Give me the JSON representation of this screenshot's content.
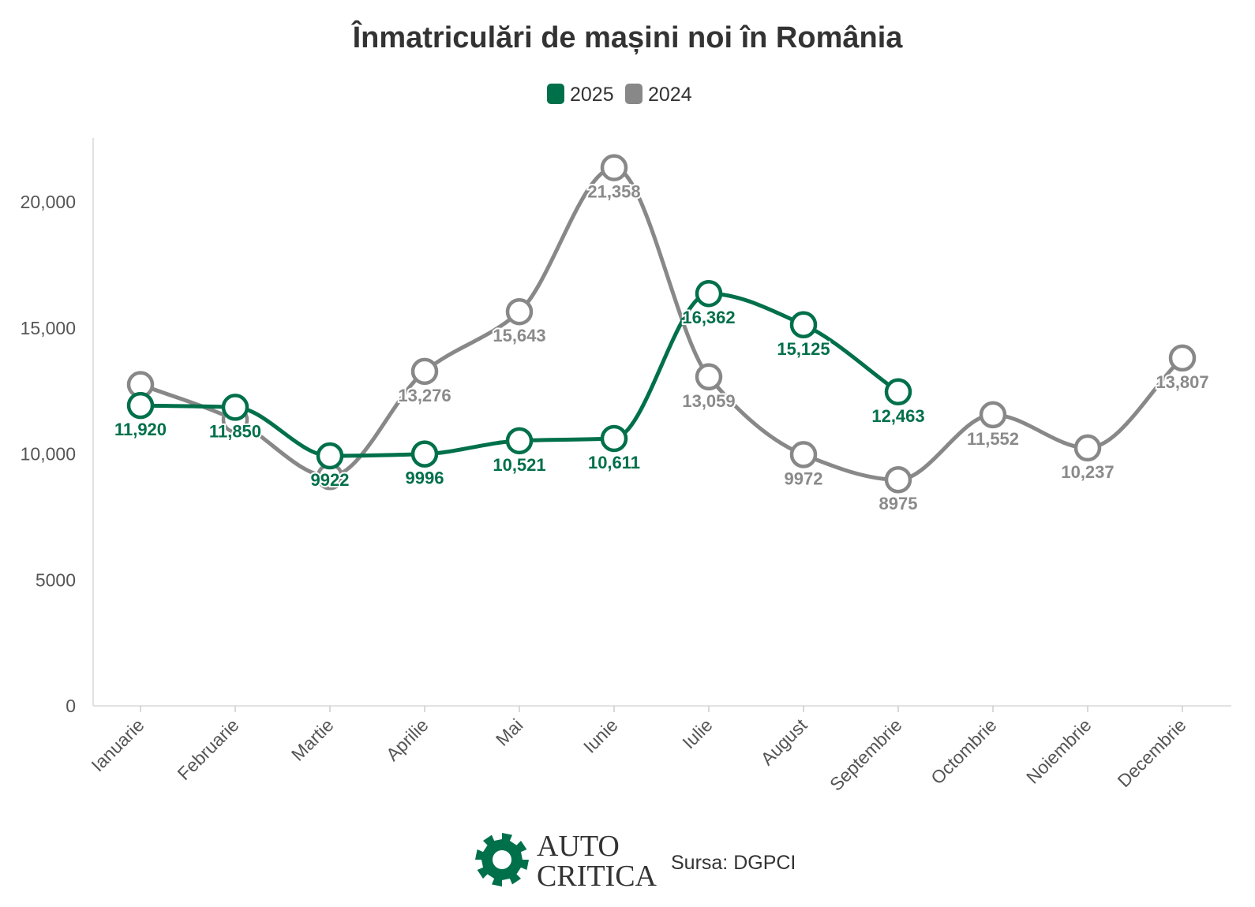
{
  "chart_data": {
    "type": "line",
    "title": "Înmatriculări de mașini noi în România",
    "categories": [
      "Ianuarie",
      "Februarie",
      "Martie",
      "Aprilie",
      "Mai",
      "Iunie",
      "Iulie",
      "August",
      "Septembrie",
      "Octombrie",
      "Noiembrie",
      "Decembrie"
    ],
    "series": [
      {
        "name": "2025",
        "color": "#00704a",
        "values": [
          11920,
          11850,
          9922,
          9996,
          10521,
          10611,
          16362,
          15125,
          12463,
          null,
          null,
          null
        ],
        "labels": [
          "11,920",
          "11,850",
          "9922",
          "9996",
          "10,521",
          "10,611",
          "16,362",
          "15,125",
          "12,463",
          null,
          null,
          null
        ]
      },
      {
        "name": "2024",
        "color": "#888888",
        "values": [
          12750,
          11350,
          9100,
          13276,
          15643,
          21358,
          13059,
          9972,
          8975,
          11552,
          10237,
          13807
        ],
        "labels": [
          null,
          null,
          null,
          "13,276",
          "15,643",
          "21,358",
          "13,059",
          "9972",
          "8975",
          "11,552",
          "10,237",
          "13,807"
        ]
      }
    ],
    "yticks": [
      0,
      5000,
      10000,
      15000,
      20000
    ],
    "ytick_labels": [
      "0",
      "5000",
      "10,000",
      "15,000",
      "20,000"
    ],
    "ylim": [
      0,
      22500
    ],
    "xlabel": "",
    "ylabel": "",
    "legend_position": "top-center"
  },
  "footer": {
    "brand_line1": "AUTO",
    "brand_line2": "CRITICA",
    "source": "Sursa: DGPCI"
  }
}
